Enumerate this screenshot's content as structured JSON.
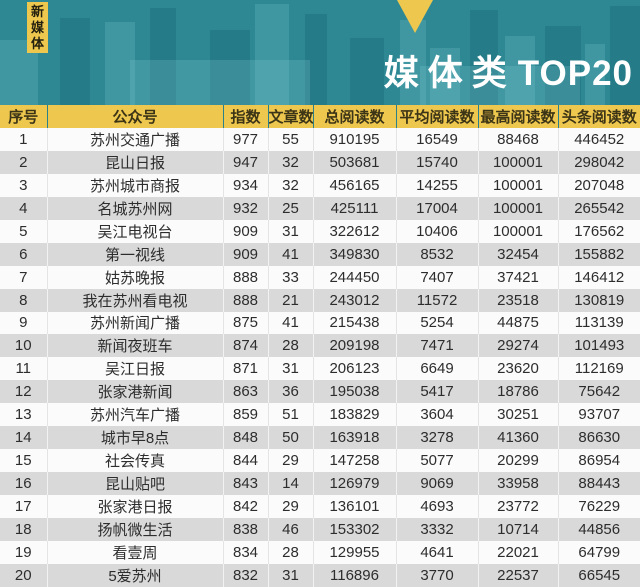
{
  "badge": {
    "label": "新媒体"
  },
  "title": {
    "cn": "媒体类",
    "en": "TOP20"
  },
  "colors": {
    "teal_background": "#2d8894",
    "accent_yellow": "#eec84e",
    "row_alternate_gray": "#d9d9d9",
    "title_white": "#ffffff",
    "cell_text": "#2d2d2d"
  },
  "icons": {
    "pin_triangle": "down-triangle-marker"
  },
  "chart_data": {
    "type": "table",
    "title": "媒体类 TOP20",
    "category_badge": "新媒体",
    "columns": [
      "序号",
      "公众号",
      "指数",
      "文章数",
      "总阅读数",
      "平均阅读数",
      "最高阅读数",
      "头条阅读数"
    ],
    "rows": [
      [
        1,
        "苏州交通广播",
        977,
        55,
        910195,
        16549,
        88468,
        446452
      ],
      [
        2,
        "昆山日报",
        947,
        32,
        503681,
        15740,
        100001,
        298042
      ],
      [
        3,
        "苏州城市商报",
        934,
        32,
        456165,
        14255,
        100001,
        207048
      ],
      [
        4,
        "名城苏州网",
        932,
        25,
        425111,
        17004,
        100001,
        265542
      ],
      [
        5,
        "吴江电视台",
        909,
        31,
        322612,
        10406,
        100001,
        176562
      ],
      [
        6,
        "第一视线",
        909,
        41,
        349830,
        8532,
        32454,
        155882
      ],
      [
        7,
        "姑苏晚报",
        888,
        33,
        244450,
        7407,
        37421,
        146412
      ],
      [
        8,
        "我在苏州看电视",
        888,
        21,
        243012,
        11572,
        23518,
        130819
      ],
      [
        9,
        "苏州新闻广播",
        875,
        41,
        215438,
        5254,
        44875,
        113139
      ],
      [
        10,
        "新闻夜班车",
        874,
        28,
        209198,
        7471,
        29274,
        101493
      ],
      [
        11,
        "吴江日报",
        871,
        31,
        206123,
        6649,
        23620,
        112169
      ],
      [
        12,
        "张家港新闻",
        863,
        36,
        195038,
        5417,
        18786,
        75642
      ],
      [
        13,
        "苏州汽车广播",
        859,
        51,
        183829,
        3604,
        30251,
        93707
      ],
      [
        14,
        "城市早8点",
        848,
        50,
        163918,
        3278,
        41360,
        86630
      ],
      [
        15,
        "社会传真",
        844,
        29,
        147258,
        5077,
        20299,
        86954
      ],
      [
        16,
        "昆山贴吧",
        843,
        14,
        126979,
        9069,
        33958,
        88443
      ],
      [
        17,
        "张家港日报",
        842,
        29,
        136101,
        4693,
        23772,
        76229
      ],
      [
        18,
        "扬帆微生活",
        838,
        46,
        153302,
        3332,
        10714,
        44856
      ],
      [
        19,
        "看壹周",
        834,
        28,
        129955,
        4641,
        22021,
        64799
      ],
      [
        20,
        "5爱苏州",
        832,
        31,
        116896,
        3770,
        22537,
        66545
      ]
    ]
  }
}
